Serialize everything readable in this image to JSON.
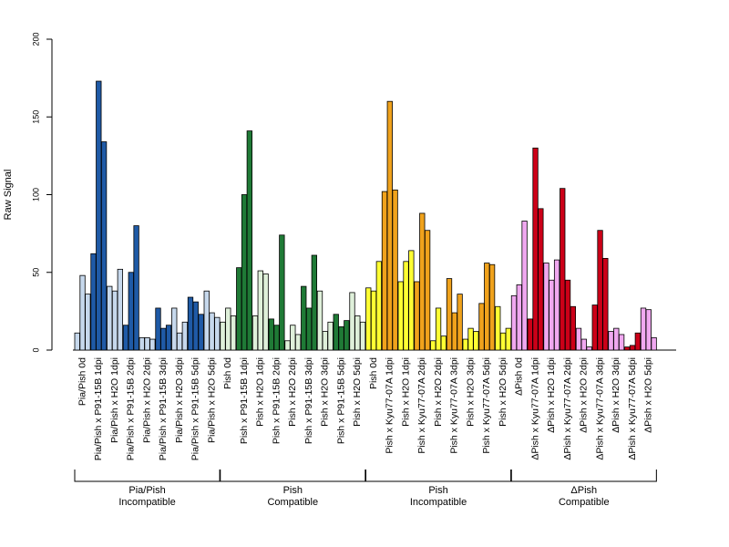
{
  "chart_data": {
    "type": "bar",
    "ylabel": "Raw Signal",
    "ylim": [
      0,
      200
    ],
    "yticks": [
      0,
      50,
      100,
      150,
      200
    ],
    "grid": false,
    "legend": "none",
    "colors": {
      "pia_pish_mock": "#c6d8ec",
      "pia_pish_pathogen": "#1f5aa6",
      "pish_compat_mock": "#dff0da",
      "pish_compat_pathogen": "#1f7a36",
      "pish_incompat_mock": "#ffff33",
      "pish_incompat_pathogen": "#f0a21c",
      "dpish_mock": "#f0a8f0",
      "dpish_pathogen": "#cc0018"
    },
    "categories": [
      {
        "label": "Pia/Pish 0d",
        "color": "pia_pish_mock",
        "values": [
          11,
          48,
          36
        ]
      },
      {
        "label": "Pia/Pish x P91-15B 1dpi",
        "color": "pia_pish_pathogen",
        "values": [
          62,
          173,
          134
        ]
      },
      {
        "label": "Pia/Pish x H2O 1dpi",
        "color": "pia_pish_mock",
        "values": [
          41,
          38,
          52
        ]
      },
      {
        "label": "Pia/Pish x P91-15B 2dpi",
        "color": "pia_pish_pathogen",
        "values": [
          16,
          50,
          80
        ]
      },
      {
        "label": "Pia/Pish x H2O 2dpi",
        "color": "pia_pish_mock",
        "values": [
          8,
          8,
          7
        ]
      },
      {
        "label": "Pia/Pish x P91-15B 3dpi",
        "color": "pia_pish_pathogen",
        "values": [
          27,
          14,
          16
        ]
      },
      {
        "label": "Pia/Pish x H2O 3dpi",
        "color": "pia_pish_mock",
        "values": [
          27,
          11,
          18
        ]
      },
      {
        "label": "Pia/Pish x P91-15B 5dpi",
        "color": "pia_pish_pathogen",
        "values": [
          34,
          31,
          23
        ]
      },
      {
        "label": "Pia/Pish x H2O 5dpi",
        "color": "pia_pish_mock",
        "values": [
          38,
          24,
          21
        ]
      },
      {
        "label": "Pish 0d",
        "color": "pish_compat_mock",
        "values": [
          18,
          27,
          22
        ]
      },
      {
        "label": "Pish x P91-15B 1dpi",
        "color": "pish_compat_pathogen",
        "values": [
          53,
          100,
          141
        ]
      },
      {
        "label": "Pish x H2O 1dpi",
        "color": "pish_compat_mock",
        "values": [
          22,
          51,
          49
        ]
      },
      {
        "label": "Pish x P91-15B 2dpi",
        "color": "pish_compat_pathogen",
        "values": [
          20,
          16,
          74
        ]
      },
      {
        "label": "Pish x H2O 2dpi",
        "color": "pish_compat_mock",
        "values": [
          6,
          16,
          10
        ]
      },
      {
        "label": "Pish x P91-15B 3dpi",
        "color": "pish_compat_pathogen",
        "values": [
          41,
          27,
          61
        ]
      },
      {
        "label": "Pish x H2O 3dpi",
        "color": "pish_compat_mock",
        "values": [
          38,
          12,
          18
        ]
      },
      {
        "label": "Pish x P91-15B 5dpi",
        "color": "pish_compat_pathogen",
        "values": [
          23,
          15,
          19
        ]
      },
      {
        "label": "Pish x H2O 5dpi",
        "color": "pish_compat_mock",
        "values": [
          37,
          22,
          18
        ]
      },
      {
        "label": "Pish 0d",
        "color": "pish_incompat_mock",
        "values": [
          40,
          38,
          57
        ]
      },
      {
        "label": "Pish x Kyu77-07A 1dpi",
        "color": "pish_incompat_pathogen",
        "values": [
          102,
          160,
          103
        ]
      },
      {
        "label": "Pish x H2O 1dpi",
        "color": "pish_incompat_mock",
        "values": [
          44,
          57,
          64
        ]
      },
      {
        "label": "Pish x Kyu77-07A 2dpi",
        "color": "pish_incompat_pathogen",
        "values": [
          44,
          88,
          77
        ]
      },
      {
        "label": "Pish x H2O 2dpi",
        "color": "pish_incompat_mock",
        "values": [
          6,
          27,
          9
        ]
      },
      {
        "label": "Pish x Kyu77-07A 3dpi",
        "color": "pish_incompat_pathogen",
        "values": [
          46,
          24,
          36
        ]
      },
      {
        "label": "Pish x H2O 3dpi",
        "color": "pish_incompat_mock",
        "values": [
          7,
          14,
          12
        ]
      },
      {
        "label": "Pish x Kyu77-07A 5dpi",
        "color": "pish_incompat_pathogen",
        "values": [
          30,
          56,
          55
        ]
      },
      {
        "label": "Pish x H2O 5dpi",
        "color": "pish_incompat_mock",
        "values": [
          28,
          11,
          14
        ]
      },
      {
        "label": "ΔPish 0d",
        "color": "dpish_mock",
        "values": [
          35,
          42,
          83
        ]
      },
      {
        "label": "ΔPish x Kyu77-07A 1dpi",
        "color": "dpish_pathogen",
        "values": [
          20,
          130,
          91
        ]
      },
      {
        "label": "ΔPish x H2O 1dpi",
        "color": "dpish_mock",
        "values": [
          56,
          45,
          58
        ]
      },
      {
        "label": "ΔPish x Kyu77-07A 2dpi",
        "color": "dpish_pathogen",
        "values": [
          104,
          45,
          28
        ]
      },
      {
        "label": "ΔPish x H2O 2dpi",
        "color": "dpish_mock",
        "values": [
          14,
          7,
          2
        ]
      },
      {
        "label": "ΔPish x Kyu77-07A 3dpi",
        "color": "dpish_pathogen",
        "values": [
          29,
          77,
          59
        ]
      },
      {
        "label": "ΔPish x H2O 3dpi",
        "color": "dpish_mock",
        "values": [
          12,
          14,
          10
        ]
      },
      {
        "label": "ΔPish x Kyu77-07A 5dpi",
        "color": "dpish_pathogen",
        "values": [
          2,
          3,
          11
        ]
      },
      {
        "label": "ΔPish x H2O 5dpi",
        "color": "dpish_mock",
        "values": [
          27,
          26,
          8
        ]
      }
    ],
    "groups": [
      {
        "lines": [
          "Pia/Pish",
          "Incompatible"
        ],
        "start": 0,
        "end": 8
      },
      {
        "lines": [
          "Pish",
          "Compatible"
        ],
        "start": 9,
        "end": 17
      },
      {
        "lines": [
          "Pish",
          "Incompatible"
        ],
        "start": 18,
        "end": 26
      },
      {
        "lines": [
          "ΔPish",
          "Compatible"
        ],
        "start": 27,
        "end": 35
      }
    ]
  }
}
